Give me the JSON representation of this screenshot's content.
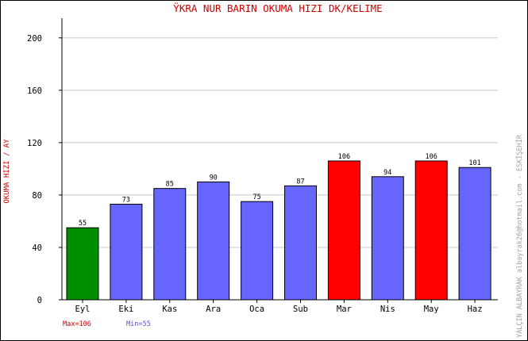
{
  "chart_data": {
    "type": "bar",
    "title": "ŸKRA NUR BARIN   OKUMA HIZI  DK/KELIME",
    "ylabel": "OKUMA HIZI / AY",
    "xlabel": "",
    "categories": [
      "Eyl",
      "Eki",
      "Kas",
      "Ara",
      "Oca",
      "Sub",
      "Mar",
      "Nis",
      "May",
      "Haz"
    ],
    "values": [
      55,
      73,
      85,
      90,
      75,
      87,
      106,
      94,
      106,
      101
    ],
    "ylim": [
      0,
      215
    ],
    "yticks": [
      0,
      40,
      80,
      120,
      160,
      200
    ],
    "grid": true,
    "colors": {
      "default": "#6666ff",
      "max": "#ff0000",
      "min": "#008f00",
      "title": "#cc0000",
      "ylabel": "#cc0000",
      "max_label": "#cc0000",
      "min_label": "#5555cc",
      "credit": "#a0a0a0"
    },
    "max_label": "Max=106",
    "min_label": "Min=55",
    "credit": "YALÇIN ALBAYRAK  albayrak26@hotmail.com - ESKİŞEHİR"
  }
}
